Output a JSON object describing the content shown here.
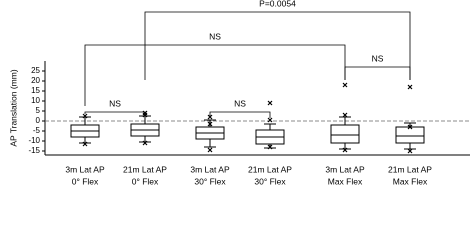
{
  "chart_data": {
    "type": "box",
    "y_label": "AP Translation (mm)",
    "ylim": [
      -17,
      30
    ],
    "yticks": [
      -15,
      -10,
      -5,
      0,
      5,
      10,
      15,
      20,
      25
    ],
    "categories": [
      [
        "3m Lat AP",
        "0° Flex"
      ],
      [
        "21m Lat AP",
        "0° Flex"
      ],
      [
        "3m Lat AP",
        "30° Flex"
      ],
      [
        "21m Lat AP",
        "30° Flex"
      ],
      [
        "3m Lat AP",
        "Max Flex"
      ],
      [
        "21m Lat AP",
        "Max Flex"
      ]
    ],
    "boxes": [
      {
        "min": -11,
        "q1": -8,
        "median": -5,
        "q3": -2,
        "max": 2,
        "outliers": [
          2.5,
          -11.5
        ]
      },
      {
        "min": -10.5,
        "q1": -7.5,
        "median": -4.5,
        "q3": -1.5,
        "max": 2.5,
        "outliers": [
          4,
          3,
          -11
        ]
      },
      {
        "min": -13,
        "q1": -9,
        "median": -6,
        "q3": -3,
        "max": 0.5,
        "outliers": [
          2,
          -1.5,
          -14.5
        ]
      },
      {
        "min": -13.5,
        "q1": -11.5,
        "median": -8,
        "q3": -4.5,
        "max": -1.5,
        "outliers": [
          9,
          0.5,
          -13
        ]
      },
      {
        "min": -14,
        "q1": -11,
        "median": -7,
        "q3": -2,
        "max": 2,
        "outliers": [
          18,
          3,
          -14.5
        ]
      },
      {
        "min": -14,
        "q1": -11,
        "median": -7.5,
        "q3": -3,
        "max": -1,
        "outliers": [
          17,
          -3,
          -15
        ]
      }
    ],
    "annotations": [
      "P=0.0054",
      "NS",
      "NS",
      "NS",
      "NS"
    ]
  }
}
